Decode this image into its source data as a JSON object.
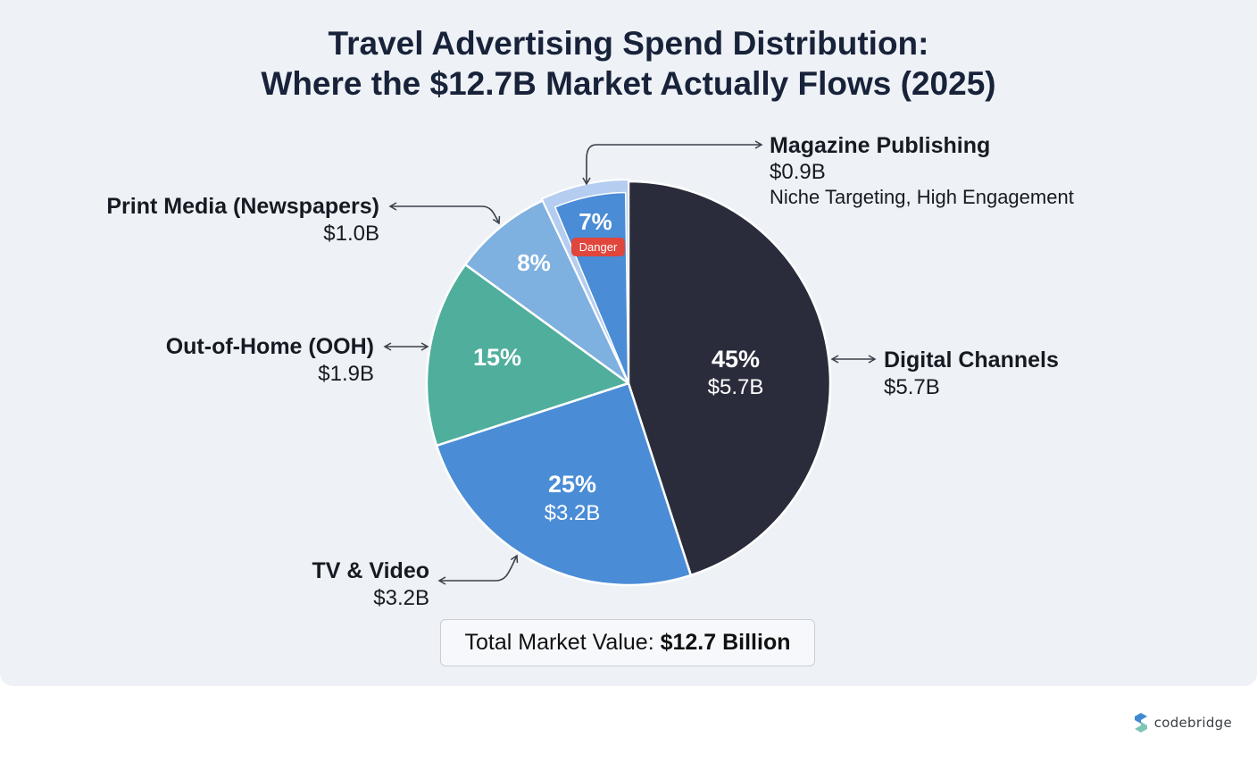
{
  "chart_data": {
    "type": "pie",
    "title_line1": "Travel Advertising Spend Distribution:",
    "title_line2": "Where the $12.7B Market Actually Flows (2025)",
    "slices": [
      {
        "name": "Digital Channels",
        "percent": 45,
        "percent_label": "45%",
        "value": 5.7,
        "value_label": "$5.7B",
        "color": "#2a2c3b",
        "inside_value": "$5.7B"
      },
      {
        "name": "TV & Video",
        "percent": 25,
        "percent_label": "25%",
        "value": 3.2,
        "value_label": "$3.2B",
        "color": "#4a8cd6",
        "inside_value": "$3.2B"
      },
      {
        "name": "Out-of-Home (OOH)",
        "percent": 15,
        "percent_label": "15%",
        "value": 1.9,
        "value_label": "$1.9B",
        "color": "#4fae9c"
      },
      {
        "name": "Print Media (Newspapers)",
        "percent": 8,
        "percent_label": "8%",
        "value": 1.0,
        "value_label": "$1.0B",
        "color": "#7eb0e0"
      },
      {
        "name": "Magazine Publishing",
        "percent": 7,
        "percent_label": "7%",
        "value": 0.9,
        "value_label": "$0.9B",
        "color": "#4a8cd6",
        "note": "Niche Targeting, High Engagement",
        "badge": "Danger"
      }
    ],
    "total": {
      "label": "Total Market Value:",
      "value": "$12.7 Billion"
    }
  },
  "colors": {
    "panel_bg": "#eef2f7",
    "title": "#18233a",
    "badge": "#e0463c",
    "magazine_halo": "#b4cdf0"
  },
  "brand": {
    "name": "codebridge",
    "icon": "codebridge-logo-icon"
  }
}
